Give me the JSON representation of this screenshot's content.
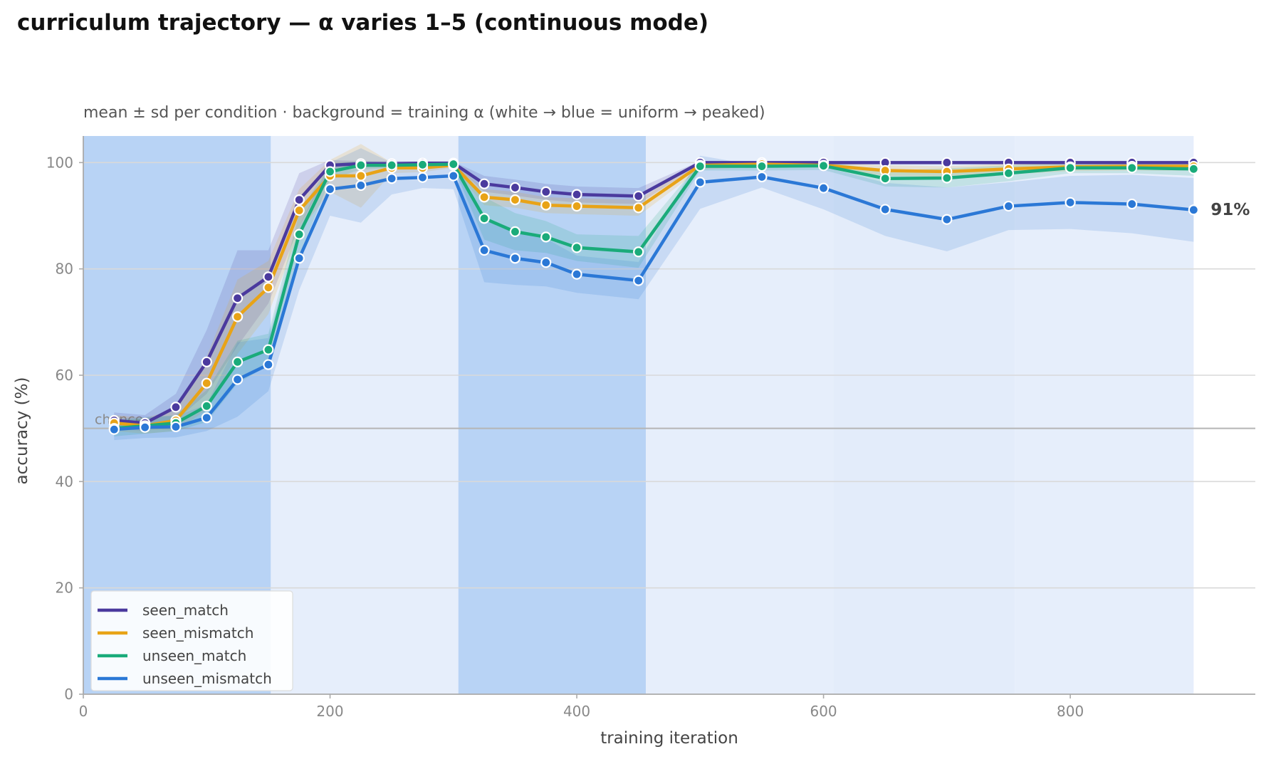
{
  "chart_data": {
    "type": "line",
    "title": "curriculum trajectory — α varies 1–5 (continuous mode)",
    "subtitle": "mean ± sd per condition · background = training α (white → blue = uniform → peaked)",
    "xlabel": "training iteration",
    "ylabel": "accuracy (%)",
    "xlim": [
      0,
      950
    ],
    "ylim": [
      0,
      105
    ],
    "xticks": [
      0,
      200,
      400,
      600,
      800
    ],
    "yticks": [
      0,
      20,
      40,
      60,
      80,
      100
    ],
    "grid": "horizontal",
    "legend_position": "lower-left",
    "chance_line": {
      "value": 50,
      "label": "chance"
    },
    "end_annotation": {
      "series": "unseen_mismatch",
      "label": "91%"
    },
    "background_bands": [
      {
        "x_start": 0,
        "x_end": 152,
        "color": "#b8d3f5"
      },
      {
        "x_start": 152,
        "x_end": 304,
        "color": "#e6eefb"
      },
      {
        "x_start": 304,
        "x_end": 456,
        "color": "#b8d3f5"
      },
      {
        "x_start": 456,
        "x_end": 608,
        "color": "#e6eefb"
      },
      {
        "x_start": 608,
        "x_end": 755,
        "color": "#e3ecfa"
      },
      {
        "x_start": 755,
        "x_end": 900,
        "color": "#e6eefb"
      }
    ],
    "x": [
      25,
      50,
      75,
      100,
      125,
      150,
      175,
      200,
      225,
      250,
      275,
      300,
      325,
      350,
      375,
      400,
      450,
      500,
      550,
      600,
      650,
      700,
      750,
      800,
      850,
      900
    ],
    "series": [
      {
        "name": "seen_match",
        "color": "#4b3a9e",
        "values": [
          51.5,
          51.0,
          54.0,
          62.5,
          74.5,
          78.5,
          93.0,
          99.5,
          99.8,
          99.8,
          99.9,
          99.9,
          96.0,
          95.3,
          94.5,
          94.0,
          93.7,
          100,
          100,
          100,
          100,
          100,
          100,
          100,
          100,
          100
        ],
        "sd": [
          1.5,
          1.5,
          2.5,
          6.0,
          9.0,
          5.0,
          5.0,
          1.0,
          0.5,
          0.5,
          0.3,
          0.3,
          1.5,
          1.5,
          1.5,
          1.5,
          1.5,
          0.3,
          0.3,
          0.3,
          0.3,
          0.3,
          0.3,
          0.3,
          0.3,
          0.3
        ]
      },
      {
        "name": "seen_mismatch",
        "color": "#e8a317",
        "values": [
          51.0,
          50.5,
          51.5,
          58.5,
          71.0,
          76.5,
          91.0,
          97.5,
          97.5,
          99.0,
          99.0,
          99.5,
          93.5,
          93.0,
          92.0,
          91.8,
          91.5,
          99.5,
          99.7,
          99.5,
          98.5,
          98.3,
          98.8,
          99.2,
          99.3,
          99.3
        ],
        "sd": [
          1.5,
          1.5,
          2.0,
          5.0,
          7.0,
          5.0,
          4.0,
          3.0,
          6.0,
          1.0,
          0.8,
          0.5,
          1.5,
          1.5,
          1.5,
          1.5,
          1.5,
          0.8,
          0.5,
          0.5,
          1.0,
          1.0,
          1.0,
          0.8,
          0.8,
          0.8
        ]
      },
      {
        "name": "unseen_match",
        "color": "#1aab7a",
        "values": [
          50.0,
          50.5,
          51.0,
          54.2,
          62.5,
          64.8,
          86.5,
          98.3,
          99.5,
          99.5,
          99.6,
          99.7,
          89.5,
          87.0,
          86.0,
          84.0,
          83.2,
          99.3,
          99.3,
          99.4,
          97.0,
          97.1,
          98.0,
          99.0,
          99.0,
          98.8
        ],
        "sd": [
          1.5,
          1.5,
          1.5,
          3.0,
          4.0,
          3.0,
          4.0,
          1.5,
          0.8,
          0.5,
          0.5,
          0.5,
          4.0,
          3.5,
          3.0,
          2.5,
          3.0,
          0.8,
          0.8,
          0.8,
          1.5,
          1.8,
          1.5,
          1.0,
          1.0,
          1.3
        ]
      },
      {
        "name": "unseen_mismatch",
        "color": "#2b78d6",
        "values": [
          49.8,
          50.2,
          50.3,
          52.0,
          59.2,
          62.0,
          82.0,
          95.0,
          95.7,
          97.0,
          97.2,
          97.5,
          83.5,
          82.0,
          81.2,
          79.0,
          77.8,
          96.3,
          97.3,
          95.2,
          91.2,
          89.3,
          91.8,
          92.5,
          92.2,
          91.1
        ],
        "sd": [
          2.0,
          2.0,
          2.0,
          2.5,
          7.0,
          5.0,
          6.0,
          5.0,
          7.0,
          3.0,
          2.0,
          2.5,
          6.0,
          5.0,
          4.5,
          3.5,
          3.5,
          5.0,
          2.0,
          4.0,
          5.0,
          6.0,
          4.5,
          5.0,
          5.5,
          6.0
        ]
      }
    ]
  }
}
